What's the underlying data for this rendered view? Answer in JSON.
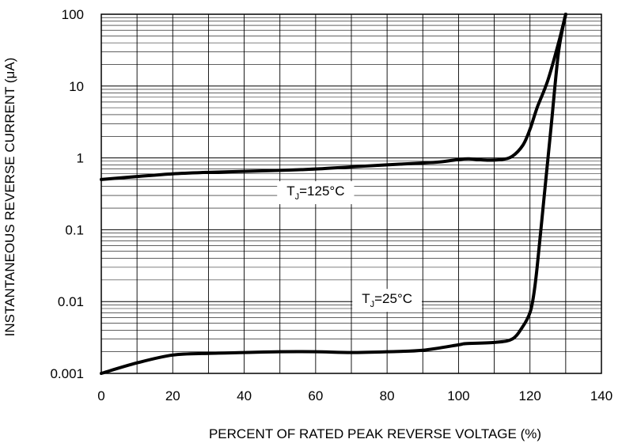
{
  "chart_data": {
    "type": "line",
    "title": "",
    "xlabel": "PERCENT OF RATED PEAK REVERSE VOLTAGE (%)",
    "ylabel": "INSTANTANEOUS REVERSE CURRENT (μA)",
    "xlim": [
      0,
      140
    ],
    "ylim": [
      0.001,
      100
    ],
    "yscale": "log",
    "grid": true,
    "x_ticks": [
      "0",
      "20",
      "40",
      "60",
      "80",
      "100",
      "120",
      "140"
    ],
    "y_ticks": [
      "0.001",
      "0.01",
      "0.1",
      "1",
      "10",
      "100"
    ],
    "series": [
      {
        "name": "TJ=125°C",
        "label_main": "T",
        "label_sub": "J",
        "label_rest": "=125°C",
        "label_at": [
          60,
          0.3
        ],
        "x": [
          0,
          10,
          20,
          30,
          40,
          50,
          60,
          70,
          80,
          90,
          95,
          100,
          103,
          108,
          112,
          115,
          118,
          120,
          122,
          125,
          128,
          130
        ],
        "y": [
          0.5,
          0.55,
          0.6,
          0.63,
          0.65,
          0.67,
          0.7,
          0.75,
          0.8,
          0.85,
          0.88,
          0.95,
          0.97,
          0.93,
          0.95,
          1.05,
          1.5,
          2.5,
          5,
          12,
          40,
          100
        ]
      },
      {
        "name": "TJ=25°C",
        "label_main": "T",
        "label_sub": "J",
        "label_rest": "=25°C",
        "label_at": [
          80,
          0.0095
        ],
        "x": [
          0,
          10,
          20,
          30,
          40,
          50,
          60,
          70,
          80,
          90,
          100,
          102,
          110,
          115,
          118,
          120,
          121,
          122,
          124,
          126,
          128,
          130
        ],
        "y": [
          0.001,
          0.0014,
          0.0018,
          0.0019,
          0.00195,
          0.002,
          0.002,
          0.00195,
          0.002,
          0.0021,
          0.0025,
          0.0026,
          0.0027,
          0.003,
          0.0045,
          0.007,
          0.012,
          0.03,
          0.3,
          3,
          30,
          100
        ]
      }
    ]
  }
}
